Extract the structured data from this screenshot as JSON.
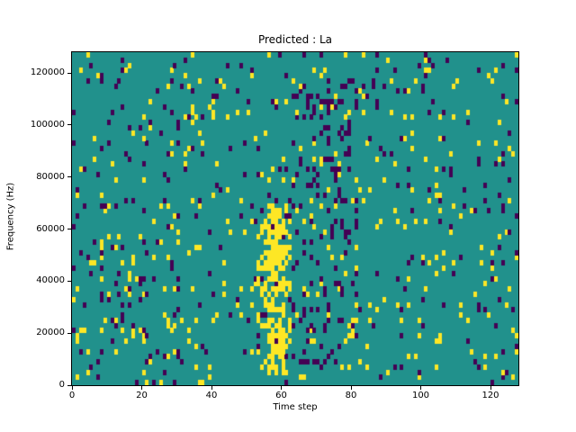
{
  "figure": {
    "background": "#ffffff"
  },
  "chart_data": {
    "type": "heatmap",
    "title": "Predicted : La",
    "xlabel": "Time step",
    "ylabel": "Frequency (Hz)",
    "nx": 128,
    "ny": 64,
    "xlim": [
      0,
      128
    ],
    "ylim": [
      0,
      128000
    ],
    "x_ticks": [
      0,
      20,
      40,
      60,
      80,
      100,
      120
    ],
    "y_ticks": [
      0,
      20000,
      40000,
      60000,
      80000,
      100000,
      120000
    ],
    "grid": false,
    "legend": false,
    "colors": {
      "low": "#440154",
      "mid": "#21918c",
      "high": "#fde725"
    },
    "pattern": {
      "description": "Mostly mid-teal cells with sparse dark-purple and yellow cells; dense yellow vertical band near time step 53-62 below 70000 Hz; cluster of dark cells near time steps 63-81; moderate mixed activity time steps 8-30 in lower half.",
      "seed": 42,
      "base": {
        "p_low": 0.035,
        "p_high": 0.035
      },
      "regions": [
        {
          "x0": 56,
          "x1": 60,
          "y0": 2,
          "y1": 32,
          "p_low": 0.05,
          "p_high": 0.62
        },
        {
          "x0": 53,
          "x1": 62,
          "y0": 2,
          "y1": 34,
          "p_low": 0.08,
          "p_high": 0.3
        },
        {
          "x0": 63,
          "x1": 81,
          "y0": 4,
          "y1": 58,
          "p_low": 0.14,
          "p_high": 0.05
        },
        {
          "x0": 8,
          "x1": 30,
          "y0": 4,
          "y1": 34,
          "p_low": 0.07,
          "p_high": 0.07
        }
      ]
    }
  }
}
